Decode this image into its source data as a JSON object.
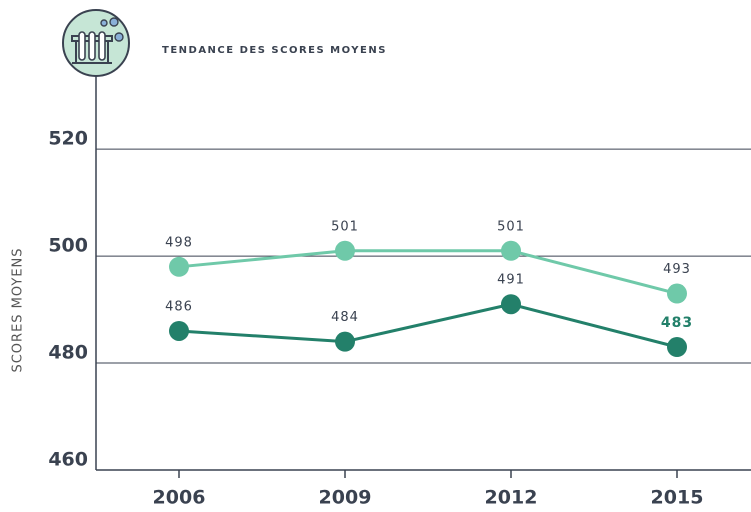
{
  "chart_data": {
    "type": "line",
    "title": "TENDANCE DES SCORES MOYENS",
    "y_label": "SCORES MOYENS",
    "categories": [
      "2006",
      "2009",
      "2012",
      "2015"
    ],
    "series": [
      {
        "color": "#6fc9a9",
        "values": [
          498,
          501,
          501,
          493
        ]
      },
      {
        "color": "#23806a",
        "values": [
          486,
          484,
          491,
          483
        ]
      }
    ],
    "ylim": [
      460,
      532
    ],
    "yticks": [
      460,
      480,
      500,
      520
    ],
    "grid": true
  }
}
